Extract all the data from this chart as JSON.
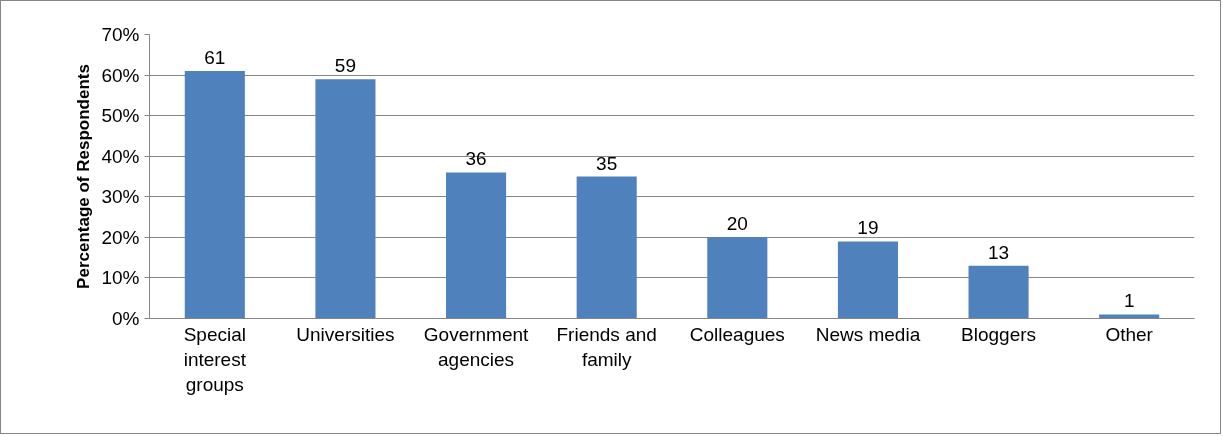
{
  "chart_data": {
    "type": "bar",
    "ylabel": "Percentage of Respondents",
    "categories": [
      "Special interest groups",
      "Universities",
      "Government agencies",
      "Friends and family",
      "Colleagues",
      "News media",
      "Bloggers",
      "Other"
    ],
    "values": [
      61,
      59,
      36,
      35,
      20,
      19,
      13,
      1
    ],
    "color": "#4f81bd",
    "ylim": [
      0,
      70
    ],
    "yticks": [
      {
        "value": 0,
        "label": "0%"
      },
      {
        "value": 10,
        "label": "10%"
      },
      {
        "value": 20,
        "label": "20%"
      },
      {
        "value": 30,
        "label": "30%"
      },
      {
        "value": 40,
        "label": "40%"
      },
      {
        "value": 50,
        "label": "50%"
      },
      {
        "value": 60,
        "label": "60%"
      },
      {
        "value": 70,
        "label": "70%"
      }
    ],
    "grid": "y",
    "data_labels": true
  }
}
